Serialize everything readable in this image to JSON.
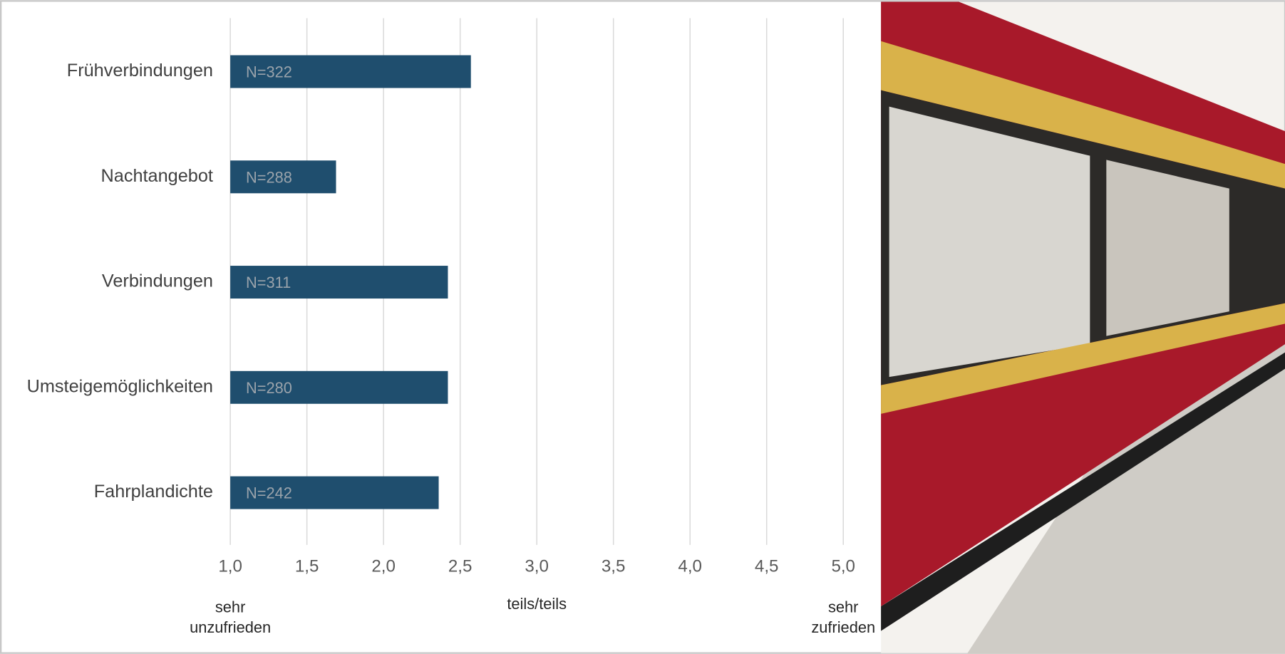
{
  "chart_data": {
    "type": "bar",
    "orientation": "horizontal",
    "categories": [
      "Frühverbindungen",
      "Nachtangebot",
      "Verbindungen",
      "Umsteigemöglichkeiten",
      "Fahrplandichte"
    ],
    "values": [
      2.57,
      1.69,
      2.42,
      2.42,
      2.36
    ],
    "bar_labels": [
      "N=322",
      "N=288",
      "N=311",
      "N=280",
      "N=242"
    ],
    "color": "#1f4e6e",
    "xlim": [
      1,
      5
    ],
    "xticks": [
      {
        "value": 1,
        "label": "1,0"
      },
      {
        "value": 1.5,
        "label": "1,5"
      },
      {
        "value": 2,
        "label": "2,0"
      },
      {
        "value": 2.5,
        "label": "2,5"
      },
      {
        "value": 3,
        "label": "3,0"
      },
      {
        "value": 3.5,
        "label": "3,5"
      },
      {
        "value": 4,
        "label": "4,0"
      },
      {
        "value": 4.5,
        "label": "4,5"
      },
      {
        "value": 5,
        "label": "5,0"
      }
    ],
    "grid": true,
    "annotations": [
      {
        "x": 1,
        "lines": [
          "sehr",
          "unzufrieden"
        ]
      },
      {
        "x": 3,
        "lines": [
          "teils/teils"
        ]
      },
      {
        "x": 5,
        "lines": [
          "sehr",
          "zufrieden"
        ]
      }
    ]
  }
}
